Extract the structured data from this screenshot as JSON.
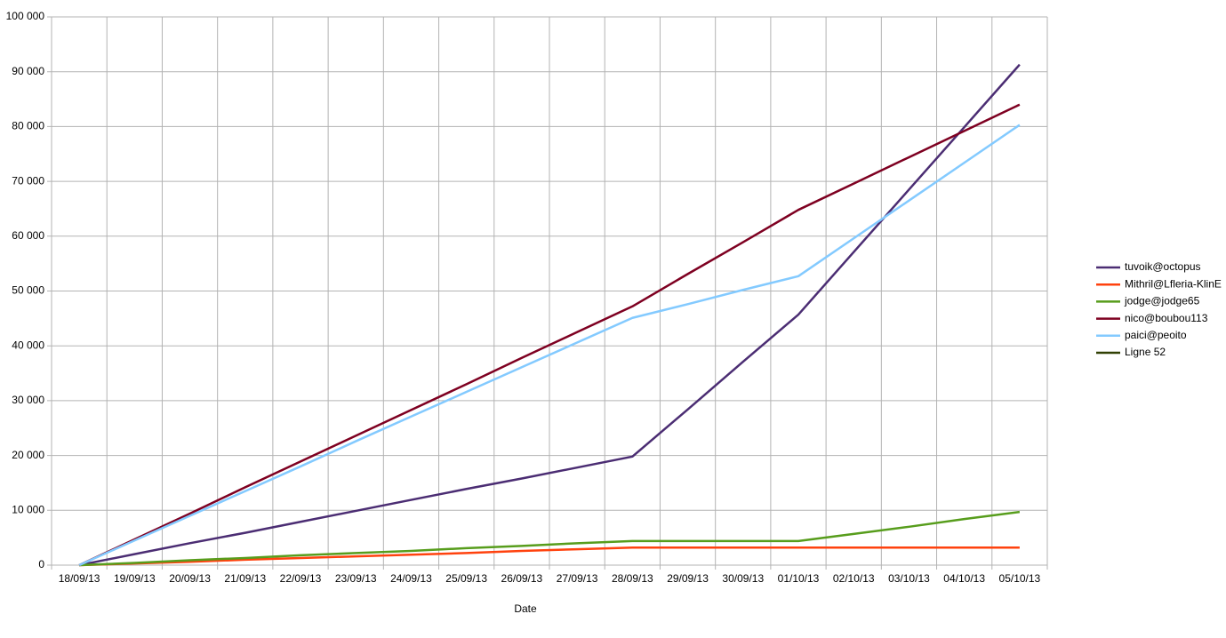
{
  "chart_data": {
    "type": "line",
    "x_label": "Date",
    "categories": [
      "18/09/13",
      "19/09/13",
      "20/09/13",
      "21/09/13",
      "22/09/13",
      "23/09/13",
      "24/09/13",
      "25/09/13",
      "26/09/13",
      "27/09/13",
      "28/09/13",
      "29/09/13",
      "30/09/13",
      "01/10/13",
      "02/10/13",
      "03/10/13",
      "04/10/13",
      "05/10/13"
    ],
    "series": [
      {
        "name": "tuvoik@octopus",
        "color": "#4b2d73",
        "values": [
          0,
          2000,
          4000,
          5900,
          7900,
          9900,
          11900,
          13900,
          15800,
          17800,
          19800,
          28400,
          37100,
          45700,
          57100,
          68500,
          79900,
          91300
        ]
      },
      {
        "name": "Mithril@Lfleria-KlinE",
        "color": "#ff420e",
        "values": [
          0,
          300,
          600,
          1000,
          1300,
          1600,
          1900,
          2200,
          2600,
          2900,
          3200,
          3200,
          3200,
          3200,
          3200,
          3200,
          3200,
          3200
        ]
      },
      {
        "name": "jodge@jodge65",
        "color": "#579d1c",
        "values": [
          0,
          400,
          900,
          1300,
          1800,
          2200,
          2600,
          3100,
          3500,
          4000,
          4400,
          4400,
          4400,
          4400,
          5700,
          7000,
          8400,
          9700
        ]
      },
      {
        "name": "nico@boubou113",
        "color": "#7e0021",
        "values": [
          0,
          4700,
          9400,
          14200,
          18900,
          23600,
          28300,
          33000,
          37800,
          42500,
          47200,
          53100,
          58900,
          64800,
          69600,
          74400,
          79200,
          84000
        ]
      },
      {
        "name": "paici@peoito",
        "color": "#83caff",
        "values": [
          0,
          4500,
          9000,
          13500,
          18000,
          22600,
          27100,
          31600,
          36100,
          40600,
          45100,
          47600,
          50200,
          52700,
          59600,
          66500,
          73400,
          80300
        ]
      },
      {
        "name": "Ligne 52",
        "color": "#314004",
        "values": [
          null,
          null,
          null,
          null,
          null,
          null,
          null,
          null,
          null,
          null,
          null,
          null,
          null,
          null,
          null,
          null,
          null,
          null
        ]
      }
    ],
    "ylim": [
      0,
      100000
    ],
    "yticks": [
      0,
      {
        "value": 10000,
        "label": "10 000"
      },
      {
        "value": 20000,
        "label": "20 000"
      },
      {
        "value": 30000,
        "label": "30 000"
      },
      {
        "value": 40000,
        "label": "40 000"
      },
      {
        "value": 50000,
        "label": "50 000"
      },
      {
        "value": 60000,
        "label": "60 000"
      },
      {
        "value": 70000,
        "label": "70 000"
      },
      {
        "value": 80000,
        "label": "80 000"
      },
      {
        "value": 90000,
        "label": "90 000"
      },
      {
        "value": 100000,
        "label": "100 000"
      }
    ],
    "grid": true,
    "legend": "right"
  }
}
